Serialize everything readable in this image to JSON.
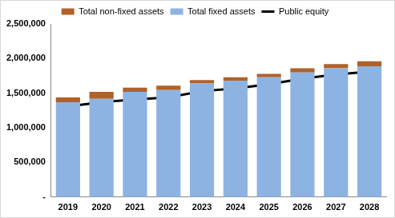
{
  "chart_data": {
    "type": "bar",
    "categories": [
      "2019",
      "2020",
      "2021",
      "2022",
      "2023",
      "2024",
      "2025",
      "2026",
      "2027",
      "2028"
    ],
    "series": [
      {
        "name": "Total non-fixed assets",
        "type": "bar",
        "color": "#b0612a",
        "values": [
          70000,
          100000,
          60000,
          65000,
          50000,
          50000,
          50000,
          60000,
          60000,
          70000
        ]
      },
      {
        "name": "Total fixed assets",
        "type": "bar",
        "color": "#8db3e2",
        "values": [
          1370000,
          1420000,
          1520000,
          1545000,
          1640000,
          1680000,
          1730000,
          1800000,
          1860000,
          1890000
        ]
      },
      {
        "name": "Public equity",
        "type": "line",
        "color": "#000000",
        "values": [
          1310000,
          1370000,
          1410000,
          1440000,
          1530000,
          1570000,
          1630000,
          1710000,
          1770000,
          1810000
        ]
      }
    ],
    "stacked": true,
    "ylim": [
      0,
      2500000
    ],
    "yticks": [
      {
        "value": 0,
        "label": "-"
      },
      {
        "value": 500000,
        "label": "500,000"
      },
      {
        "value": 1000000,
        "label": "1,000,000"
      },
      {
        "value": 1500000,
        "label": "1,500,000"
      },
      {
        "value": 2000000,
        "label": "2,000,000"
      },
      {
        "value": 2500000,
        "label": "2,500,000"
      }
    ],
    "grid": false,
    "legend": "top",
    "data_labels": false
  }
}
